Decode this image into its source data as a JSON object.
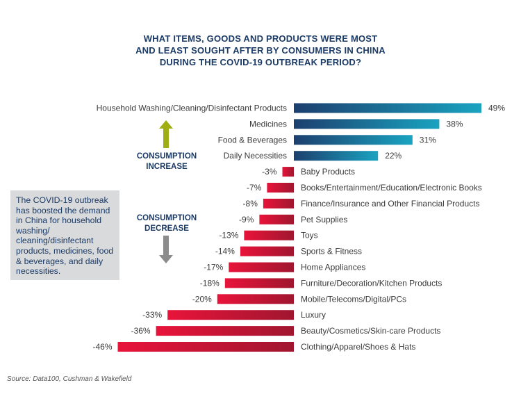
{
  "title_lines": [
    "WHAT ITEMS, GOODS AND PRODUCTS WERE MOST",
    "AND LEAST SOUGHT AFTER BY CONSUMERS IN CHINA",
    "DURING THE COVID-19 OUTBREAK PERIOD?"
  ],
  "annotations": {
    "increase": [
      "CONSUMPTION",
      "INCREASE"
    ],
    "decrease": [
      "CONSUMPTION",
      "DECREASE"
    ],
    "note": "The COVID-19 outbreak has boosted the demand in China for household washing/ cleaning/disinfectant products, medicines, food & beverages, and daily necessities."
  },
  "source": "Source: Data100, Cushman & Wakefield",
  "colors": {
    "title": "#1b3a66",
    "increase_dark": "#1c3f6e",
    "increase_light": "#1aa3c0",
    "decrease_dark": "#a0162f",
    "decrease_light": "#e8143a",
    "arrow_up": "#9fae12",
    "arrow_down": "#8c8c8c",
    "note_bg": "#d9dadb"
  },
  "chart_data": {
    "type": "bar",
    "orientation": "horizontal",
    "categories": [
      "Household Washing/Cleaning/Disinfectant Products",
      "Medicines",
      "Food & Beverages",
      "Daily Necessities",
      "Baby Products",
      "Books/Entertainment/Education/Electronic Books",
      "Finance/Insurance and Other Financial Products",
      "Pet Supplies",
      "Toys",
      "Sports & Fitness",
      "Home Appliances",
      "Furniture/Decoration/Kitchen Products",
      "Mobile/Telecoms/Digital/PCs",
      "Luxury",
      "Beauty/Cosmetics/Skin-care Products",
      "Clothing/Apparel/Shoes & Hats"
    ],
    "values": [
      49,
      38,
      31,
      22,
      -3,
      -7,
      -8,
      -9,
      -13,
      -14,
      -17,
      -18,
      -20,
      -33,
      -36,
      -46
    ],
    "value_labels": [
      "49%",
      "38%",
      "31%",
      "22%",
      "-3%",
      "-7%",
      "-8%",
      "-9%",
      "-13%",
      "-14%",
      "-17%",
      "-18%",
      "-20%",
      "-33%",
      "-36%",
      "-46%"
    ],
    "xlim": [
      -46,
      49
    ],
    "grid": false
  }
}
